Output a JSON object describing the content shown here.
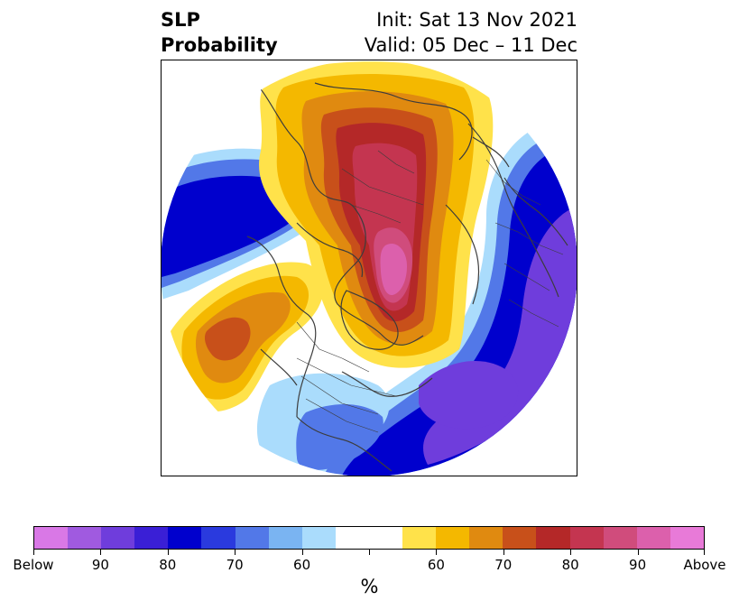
{
  "title": {
    "left_line1": "SLP",
    "left_line2": "Probability",
    "right_line1": "Init: Sat 13 Nov 2021",
    "right_line2": "Valid: 05 Dec – 11 Dec"
  },
  "colorbar": {
    "colors": [
      "#d978e6",
      "#a05ae0",
      "#6f3ddc",
      "#3a1fd6",
      "#0000cd",
      "#2a3ade",
      "#5278e8",
      "#7ab4f2",
      "#aadcfc",
      "#ffffff",
      "#ffffff",
      "#ffe24a",
      "#f4b800",
      "#e08a10",
      "#c8501a",
      "#b42828",
      "#c43550",
      "#d04c7c",
      "#dc60ac",
      "#e87ad8"
    ],
    "tick_labels": [
      "Below",
      "90",
      "80",
      "70",
      "60",
      "",
      "60",
      "70",
      "80",
      "90",
      "Above"
    ],
    "unit_label": "%"
  },
  "map": {
    "projection": "north-polar-stereographic",
    "field": "SLP probability",
    "low_colors": {
      "l60": "#aadcfc",
      "l70": "#5278e8",
      "l80": "#0000cd",
      "l90": "#6f3ddc"
    },
    "high_colors": {
      "h60": "#ffe24a",
      "h65": "#f4b800",
      "h70": "#e08a10",
      "h75": "#c8501a",
      "h80": "#b42828",
      "h85": "#c43550",
      "h90": "#d04c7c",
      "h95": "#dc60ac"
    }
  }
}
